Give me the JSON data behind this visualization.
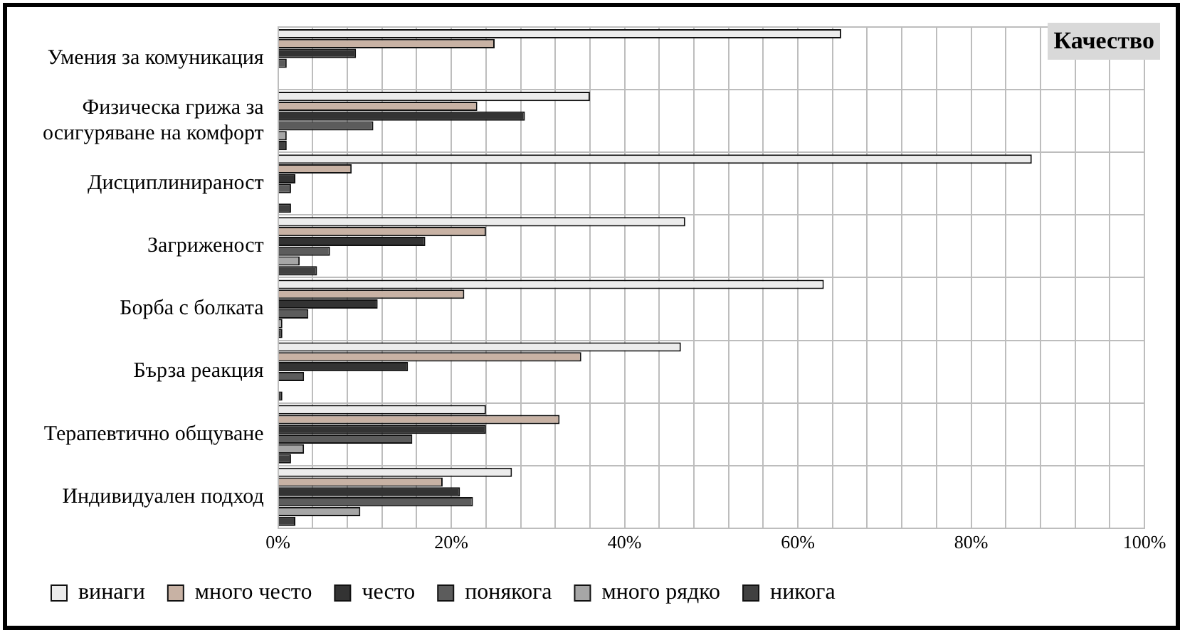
{
  "chart_data": {
    "type": "bar",
    "orientation": "horizontal",
    "title": "Качество",
    "categories": [
      "Умения за комуникация",
      "Физическа грижа за осигуряване на комфорт",
      "Дисциплинираност",
      "Загриженост",
      "Борба с болката",
      "Бърза реакция",
      "Терапевтично общуване",
      "Индивидуален подход"
    ],
    "series": [
      {
        "name": "винаги",
        "color": "#ececec",
        "values": [
          65,
          36,
          87,
          47,
          63,
          46.5,
          24,
          27
        ]
      },
      {
        "name": "много често",
        "color": "#c8b2a4",
        "values": [
          25,
          23,
          8.5,
          24,
          21.5,
          35,
          32.5,
          19
        ]
      },
      {
        "name": "често",
        "color": "#333333",
        "values": [
          9,
          28.5,
          2,
          17,
          11.5,
          15,
          24,
          21
        ]
      },
      {
        "name": "понякога",
        "color": "#5c5c5c",
        "values": [
          1,
          11,
          1.5,
          6,
          3.5,
          3,
          15.5,
          22.5
        ]
      },
      {
        "name": "много рядко",
        "color": "#a6a6a6",
        "values": [
          0,
          1,
          0,
          2.5,
          0.5,
          0,
          3,
          9.5
        ]
      },
      {
        "name": "никога",
        "color": "#404040",
        "values": [
          0,
          1,
          1.5,
          4.5,
          0.5,
          0.5,
          1.5,
          2
        ]
      }
    ],
    "xlim": [
      0,
      100
    ],
    "xticks": [
      {
        "value": 0,
        "label": "0%"
      },
      {
        "value": 4,
        "label": null
      },
      {
        "value": 8,
        "label": null
      },
      {
        "value": 12,
        "label": null
      },
      {
        "value": 16,
        "label": null
      },
      {
        "value": 20,
        "label": "20%"
      },
      {
        "value": 24,
        "label": null
      },
      {
        "value": 28,
        "label": null
      },
      {
        "value": 32,
        "label": null
      },
      {
        "value": 36,
        "label": null
      },
      {
        "value": 40,
        "label": "40%"
      },
      {
        "value": 44,
        "label": null
      },
      {
        "value": 48,
        "label": null
      },
      {
        "value": 52,
        "label": null
      },
      {
        "value": 56,
        "label": null
      },
      {
        "value": 60,
        "label": "60%"
      },
      {
        "value": 64,
        "label": null
      },
      {
        "value": 68,
        "label": null
      },
      {
        "value": 72,
        "label": null
      },
      {
        "value": 76,
        "label": null
      },
      {
        "value": 80,
        "label": "80%"
      },
      {
        "value": 84,
        "label": null
      },
      {
        "value": 88,
        "label": null
      },
      {
        "value": 92,
        "label": null
      },
      {
        "value": 96,
        "label": null
      },
      {
        "value": 100,
        "label": "100%"
      }
    ],
    "grid": true,
    "legend": "bottom"
  }
}
